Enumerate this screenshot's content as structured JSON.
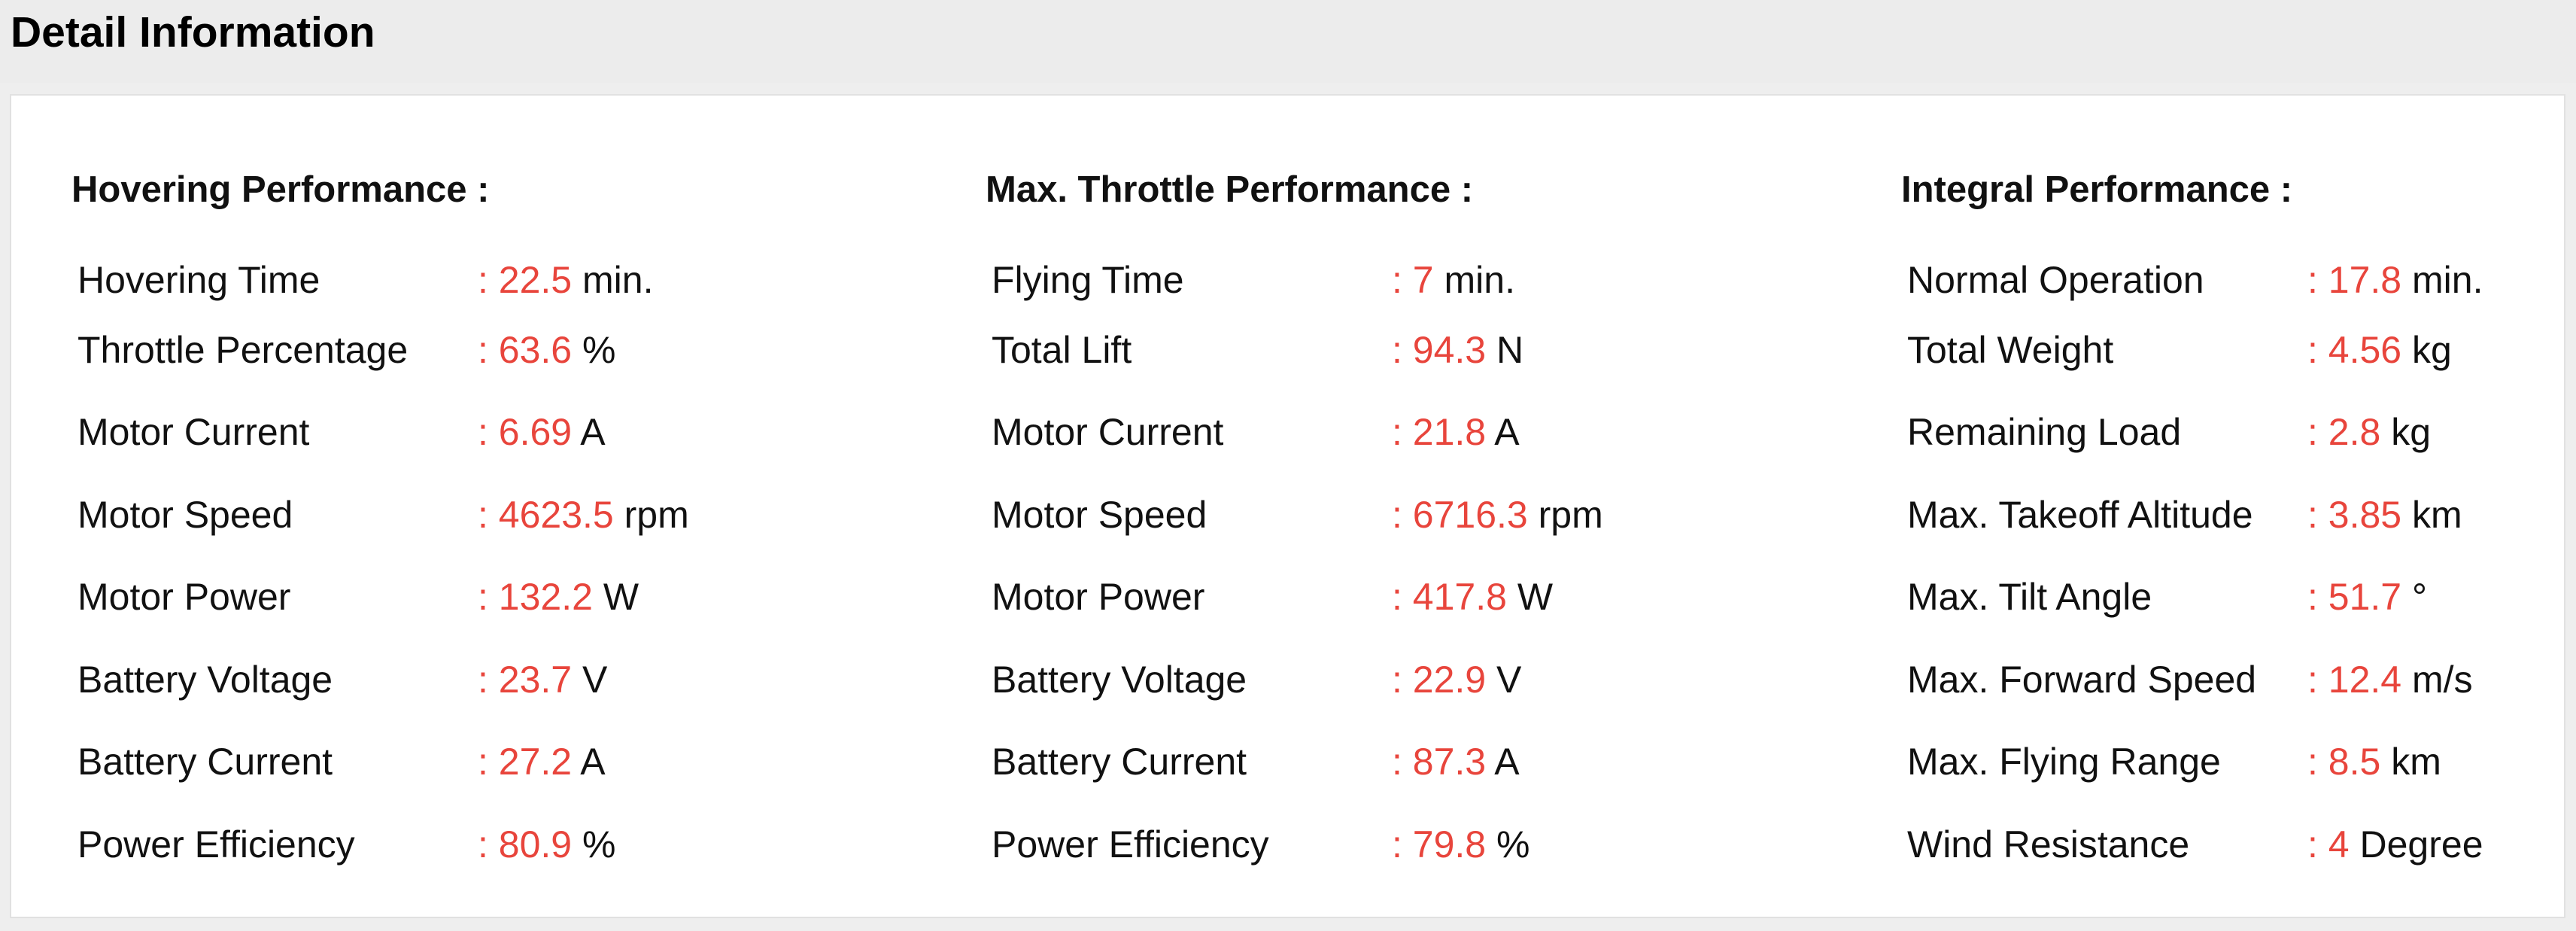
{
  "title": "Detail Information",
  "accent_color": "#e8453c",
  "sections": [
    {
      "title": "Hovering Performance :",
      "rows": [
        {
          "label": "Hovering Time",
          "value": "22.5",
          "unit": "min."
        },
        {
          "label": "Throttle Percentage",
          "value": "63.6",
          "unit": "%"
        },
        {
          "label": "Motor Current",
          "value": "6.69",
          "unit": "A"
        },
        {
          "label": "Motor Speed",
          "value": "4623.5",
          "unit": "rpm"
        },
        {
          "label": "Motor Power",
          "value": "132.2",
          "unit": "W"
        },
        {
          "label": "Battery Voltage",
          "value": "23.7",
          "unit": "V"
        },
        {
          "label": "Battery Current",
          "value": "27.2",
          "unit": "A"
        },
        {
          "label": "Power Efficiency",
          "value": "80.9",
          "unit": "%"
        }
      ]
    },
    {
      "title": "Max. Throttle Performance :",
      "rows": [
        {
          "label": "Flying Time",
          "value": "7",
          "unit": "min."
        },
        {
          "label": "Total Lift",
          "value": "94.3",
          "unit": "N"
        },
        {
          "label": "Motor Current",
          "value": "21.8",
          "unit": "A"
        },
        {
          "label": "Motor Speed",
          "value": "6716.3",
          "unit": "rpm"
        },
        {
          "label": "Motor Power",
          "value": "417.8",
          "unit": "W"
        },
        {
          "label": "Battery Voltage",
          "value": "22.9",
          "unit": "V"
        },
        {
          "label": "Battery Current",
          "value": "87.3",
          "unit": "A"
        },
        {
          "label": "Power Efficiency",
          "value": "79.8",
          "unit": "%"
        }
      ]
    },
    {
      "title": "Integral Performance :",
      "rows": [
        {
          "label": "Normal Operation",
          "value": "17.8",
          "unit": "min."
        },
        {
          "label": "Total Weight",
          "value": "4.56",
          "unit": "kg"
        },
        {
          "label": "Remaining Load",
          "value": "2.8",
          "unit": "kg"
        },
        {
          "label": "Max. Takeoff Altitude",
          "value": "3.85",
          "unit": "km"
        },
        {
          "label": "Max. Tilt Angle",
          "value": "51.7",
          "unit": "°"
        },
        {
          "label": "Max. Forward Speed",
          "value": "12.4",
          "unit": "m/s"
        },
        {
          "label": "Max. Flying Range",
          "value": "8.5",
          "unit": "km"
        },
        {
          "label": "Wind Resistance",
          "value": "4",
          "unit": "Degree"
        }
      ]
    }
  ]
}
